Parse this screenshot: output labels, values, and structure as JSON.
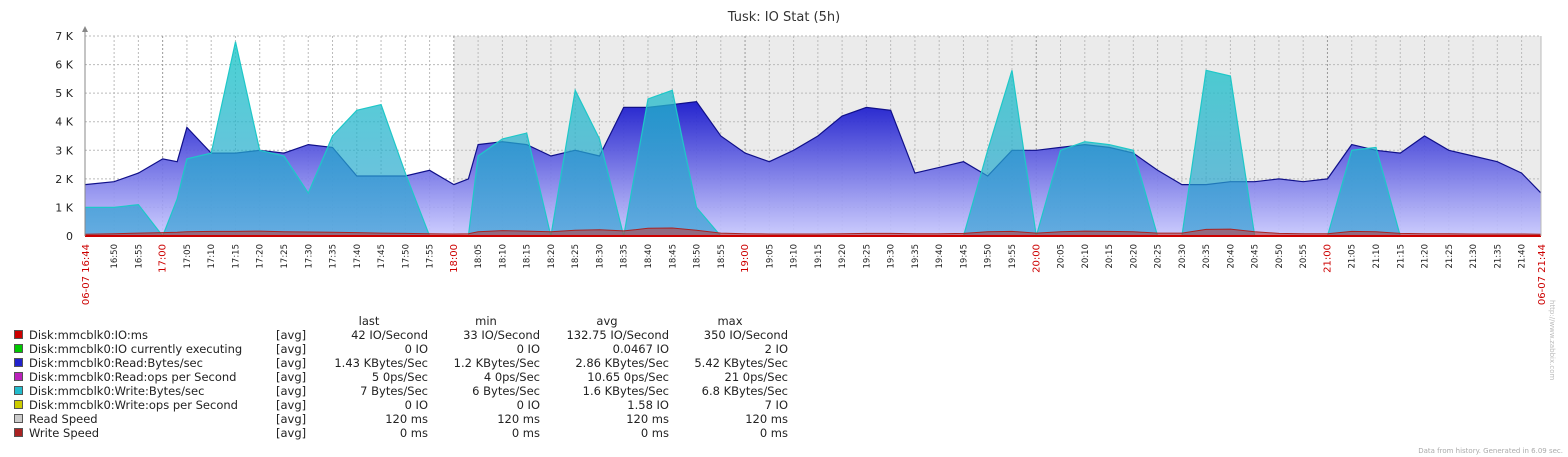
{
  "colors": {
    "red": "#cc0000",
    "plot_bg_now": "#ffffff",
    "plot_bg_shade": "#ebebeb",
    "grid": "#bbbbbb",
    "axis_text": "#222222",
    "read_fill": "#1a1acc",
    "write_fill": "#1ec8c8",
    "ms_line": "#aa2222"
  },
  "chart_data": {
    "type": "area",
    "title": "Tusk: IO Stat (5h)",
    "ylim": [
      0,
      7000
    ],
    "y_ticks": [
      "0",
      "1 K",
      "2 K",
      "3 K",
      "4 K",
      "5 K",
      "6 K",
      "7 K"
    ],
    "x_start_label": "06-07 16:44",
    "x_end_label": "06-07 21:44",
    "x_time_range": [
      "16:44",
      "21:44"
    ],
    "x_tick_labels": [
      "16:50",
      "16:55",
      "17:00",
      "17:05",
      "17:10",
      "17:15",
      "17:20",
      "17:25",
      "17:30",
      "17:35",
      "17:40",
      "17:45",
      "17:50",
      "17:55",
      "18:00",
      "18:05",
      "18:10",
      "18:15",
      "18:20",
      "18:25",
      "18:30",
      "18:35",
      "18:40",
      "18:45",
      "18:50",
      "18:55",
      "19:00",
      "19:05",
      "19:10",
      "19:15",
      "19:20",
      "19:25",
      "19:30",
      "19:35",
      "19:40",
      "19:45",
      "19:50",
      "19:55",
      "20:00",
      "20:05",
      "20:10",
      "20:15",
      "20:20",
      "20:25",
      "20:30",
      "20:35",
      "20:40",
      "20:45",
      "20:50",
      "20:55",
      "21:00",
      "21:05",
      "21:10",
      "21:15",
      "21:20",
      "21:25",
      "21:30",
      "21:35",
      "21:40"
    ],
    "x_major_labels": [
      "17:00",
      "18:00",
      "19:00",
      "20:00",
      "21:00"
    ],
    "shaded_from": "18:00",
    "x": [
      "16:44",
      "16:50",
      "16:55",
      "17:00",
      "17:03",
      "17:05",
      "17:10",
      "17:15",
      "17:20",
      "17:25",
      "17:30",
      "17:35",
      "17:40",
      "17:45",
      "17:50",
      "17:55",
      "18:00",
      "18:03",
      "18:05",
      "18:10",
      "18:15",
      "18:20",
      "18:25",
      "18:30",
      "18:35",
      "18:40",
      "18:45",
      "18:50",
      "18:55",
      "19:00",
      "19:05",
      "19:10",
      "19:15",
      "19:20",
      "19:25",
      "19:30",
      "19:35",
      "19:40",
      "19:45",
      "19:50",
      "19:55",
      "20:00",
      "20:05",
      "20:10",
      "20:15",
      "20:20",
      "20:25",
      "20:30",
      "20:35",
      "20:40",
      "20:45",
      "20:50",
      "20:55",
      "21:00",
      "21:05",
      "21:10",
      "21:15",
      "21:20",
      "21:25",
      "21:30",
      "21:35",
      "21:40",
      "21:44"
    ],
    "series": [
      {
        "name": "Disk:mmcblk0:Read:Bytes/sec",
        "color": "#1a1acc",
        "values": [
          1800,
          1900,
          2200,
          2700,
          2600,
          3800,
          2900,
          2900,
          3000,
          2900,
          3200,
          3100,
          2100,
          2100,
          2100,
          2300,
          1800,
          2000,
          3200,
          3300,
          3200,
          2800,
          3000,
          2800,
          4500,
          4500,
          4600,
          4700,
          3500,
          2900,
          2600,
          3000,
          3500,
          4200,
          4500,
          4400,
          2200,
          2400,
          2600,
          2100,
          3000,
          3000,
          3100,
          3200,
          3100,
          2900,
          2300,
          1800,
          1800,
          1900,
          1900,
          2000,
          1900,
          2000,
          3200,
          3000,
          2900,
          3500,
          3000,
          2800,
          2600,
          2200,
          1500
        ]
      },
      {
        "name": "Disk:mmcblk0:Write:Bytes/sec",
        "color": "#1ec8c8",
        "values": [
          1000,
          1000,
          1100,
          0,
          1300,
          2700,
          2900,
          6800,
          3000,
          2800,
          1500,
          3500,
          4400,
          4600,
          2200,
          0,
          0,
          0,
          2800,
          3400,
          3600,
          0,
          5100,
          3400,
          0,
          4800,
          5100,
          1000,
          0,
          0,
          0,
          0,
          0,
          0,
          0,
          0,
          0,
          0,
          0,
          3000,
          5800,
          0,
          3000,
          3300,
          3200,
          3000,
          0,
          0,
          5800,
          5600,
          0,
          0,
          0,
          0,
          3000,
          3100,
          0,
          0,
          0,
          0,
          0,
          0,
          0
        ]
      },
      {
        "name": "Disk:mmcblk0:IO:ms",
        "color": "#cc2222",
        "values": [
          60,
          80,
          100,
          120,
          130,
          150,
          160,
          160,
          170,
          150,
          140,
          130,
          120,
          100,
          90,
          80,
          70,
          80,
          150,
          190,
          170,
          150,
          200,
          220,
          180,
          270,
          280,
          200,
          100,
          80,
          70,
          70,
          70,
          80,
          90,
          90,
          80,
          80,
          90,
          150,
          160,
          100,
          150,
          170,
          160,
          150,
          100,
          100,
          230,
          240,
          150,
          90,
          80,
          80,
          160,
          150,
          90,
          80,
          80,
          70,
          70,
          70,
          60
        ]
      }
    ]
  },
  "legend": {
    "headers": {
      "last": "last",
      "min": "min",
      "avg": "avg",
      "max": "max"
    },
    "items": [
      {
        "color": "#cc0000",
        "name": "Disk:mmcblk0:IO:ms",
        "func": "[avg]",
        "last": "42 IO/Second",
        "min": "33 IO/Second",
        "avg": "132.75 IO/Second",
        "max": "350 IO/Second"
      },
      {
        "color": "#00c800",
        "name": "Disk:mmcblk0:IO currently executing",
        "func": "[avg]",
        "last": "0 IO",
        "min": "0 IO",
        "avg": "0.0467 IO",
        "max": "2 IO"
      },
      {
        "color": "#2222cc",
        "name": "Disk:mmcblk0:Read:Bytes/sec",
        "func": "[avg]",
        "last": "1.43 KBytes/Sec",
        "min": "1.2 KBytes/Sec",
        "avg": "2.86 KBytes/Sec",
        "max": "5.42 KBytes/Sec"
      },
      {
        "color": "#bb22bb",
        "name": "Disk:mmcblk0:Read:ops per Second",
        "func": "[avg]",
        "last": "5 0ps/Sec",
        "min": "4 0ps/Sec",
        "avg": "10.65 0ps/Sec",
        "max": "21 0ps/Sec"
      },
      {
        "color": "#22bbcc",
        "name": "Disk:mmcblk0:Write:Bytes/sec",
        "func": "[avg]",
        "last": "7 Bytes/Sec",
        "min": "6 Bytes/Sec",
        "avg": "1.6 KBytes/Sec",
        "max": "6.8 KBytes/Sec"
      },
      {
        "color": "#cccc00",
        "name": "Disk:mmcblk0:Write:ops per Second",
        "func": "[avg]",
        "last": "0 IO",
        "min": "0 IO",
        "avg": "1.58 IO",
        "max": "7 IO"
      },
      {
        "color": "#cccccc",
        "name": "Read Speed",
        "func": "[avg]",
        "last": "120 ms",
        "min": "120 ms",
        "avg": "120 ms",
        "max": "120 ms"
      },
      {
        "color": "#aa2222",
        "name": "Write Speed",
        "func": "[avg]",
        "last": "0 ms",
        "min": "0 ms",
        "avg": "0 ms",
        "max": "0 ms"
      }
    ]
  },
  "footer_note": "Data from history. Generated in 6.09 sec.",
  "watermark": "http://www.zabbix.com"
}
